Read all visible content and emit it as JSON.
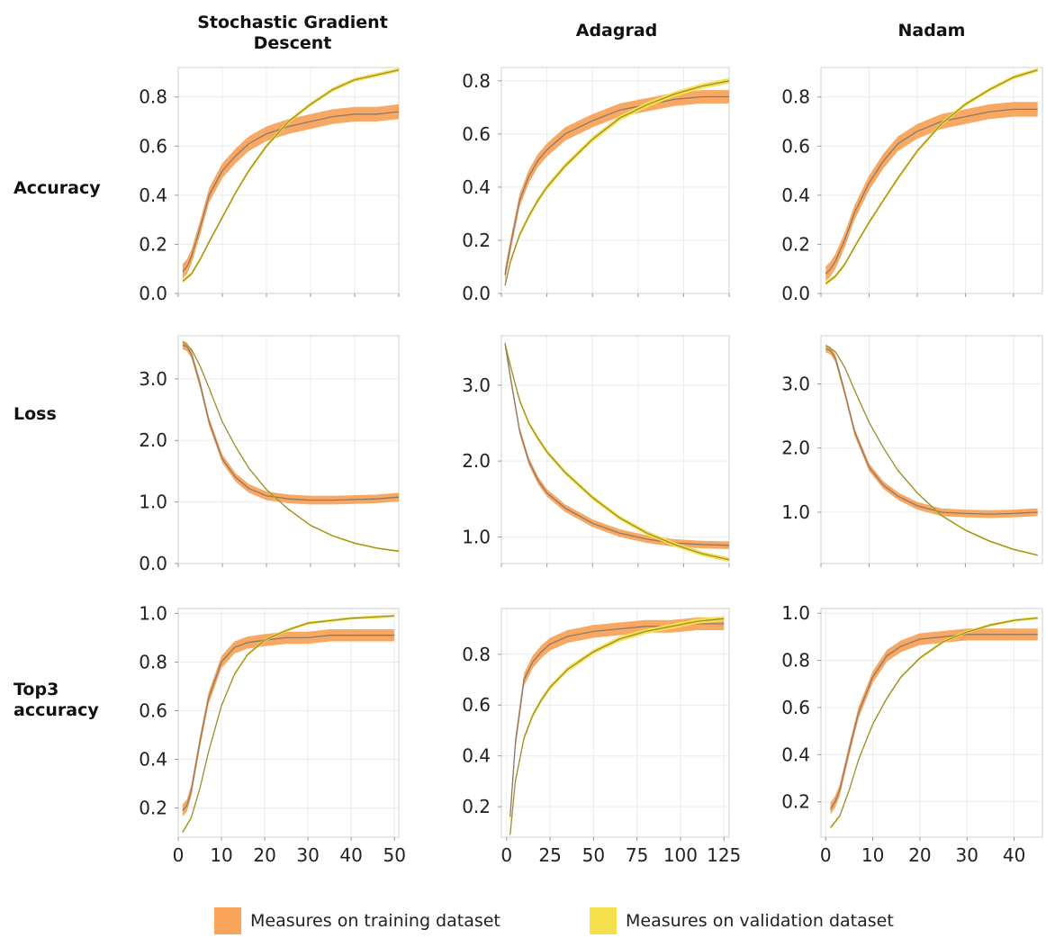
{
  "columns": [
    {
      "title_line1": "Stochastic Gradient",
      "title_line2": "Descent"
    },
    {
      "title_line1": "Adagrad",
      "title_line2": ""
    },
    {
      "title_line1": "Nadam",
      "title_line2": ""
    }
  ],
  "rows": [
    {
      "label_line1": "Accuracy",
      "label_line2": ""
    },
    {
      "label_line1": "Loss",
      "label_line2": ""
    },
    {
      "label_line1": "Top3",
      "label_line2": "accuracy"
    }
  ],
  "legend": {
    "training_label": "Measures on training dataset",
    "validation_label": "Measures on validation dataset"
  },
  "colors": {
    "training_band": "#f9a35b",
    "validation_band": "#f5e04d",
    "training_line": "#8a7a6a",
    "validation_line": "#9a8e30"
  },
  "chart_data": [
    {
      "type": "line",
      "optimizer": "Stochastic Gradient Descent",
      "metric": "Accuracy",
      "xlim": [
        0,
        50
      ],
      "ylim": [
        0,
        0.92
      ],
      "yticks": [
        0.0,
        0.2,
        0.4,
        0.6,
        0.8
      ],
      "show_xticks": false,
      "series": [
        {
          "x": [
            1,
            2,
            3,
            5,
            7,
            10,
            13,
            16,
            20,
            25,
            30,
            35,
            40,
            45,
            50
          ],
          "y": [
            0.09,
            0.11,
            0.15,
            0.27,
            0.4,
            0.5,
            0.56,
            0.61,
            0.65,
            0.68,
            0.7,
            0.72,
            0.73,
            0.73,
            0.74
          ],
          "band": 0.03
        },
        {
          "x": [
            1,
            3,
            5,
            7,
            10,
            13,
            16,
            20,
            25,
            30,
            35,
            40,
            45,
            50
          ],
          "y": [
            0.05,
            0.08,
            0.14,
            0.21,
            0.31,
            0.41,
            0.5,
            0.6,
            0.7,
            0.77,
            0.83,
            0.87,
            0.89,
            0.91
          ],
          "band": 0.008
        }
      ]
    },
    {
      "type": "line",
      "optimizer": "Adagrad",
      "metric": "Accuracy",
      "xlim": [
        0,
        125
      ],
      "ylim": [
        0,
        0.85
      ],
      "yticks": [
        0.0,
        0.2,
        0.4,
        0.6,
        0.8
      ],
      "show_xticks": false,
      "series": [
        {
          "x": [
            2,
            5,
            10,
            15,
            20,
            25,
            35,
            50,
            65,
            80,
            95,
            110,
            125
          ],
          "y": [
            0.07,
            0.18,
            0.35,
            0.44,
            0.5,
            0.54,
            0.6,
            0.65,
            0.69,
            0.71,
            0.73,
            0.74,
            0.74
          ],
          "band": 0.025
        },
        {
          "x": [
            2,
            5,
            10,
            15,
            20,
            25,
            35,
            50,
            65,
            80,
            95,
            110,
            125
          ],
          "y": [
            0.03,
            0.12,
            0.22,
            0.29,
            0.35,
            0.4,
            0.48,
            0.58,
            0.66,
            0.71,
            0.75,
            0.78,
            0.8
          ],
          "band": 0.01
        }
      ]
    },
    {
      "type": "line",
      "optimizer": "Nadam",
      "metric": "Accuracy",
      "xlim": [
        0,
        46
      ],
      "ylim": [
        0,
        0.92
      ],
      "yticks": [
        0.0,
        0.2,
        0.4,
        0.6,
        0.8
      ],
      "show_xticks": false,
      "series": [
        {
          "x": [
            1,
            2,
            3,
            5,
            7,
            10,
            13,
            16,
            20,
            25,
            30,
            35,
            40,
            45
          ],
          "y": [
            0.08,
            0.1,
            0.13,
            0.22,
            0.33,
            0.45,
            0.54,
            0.61,
            0.66,
            0.7,
            0.72,
            0.74,
            0.75,
            0.75
          ],
          "band": 0.03
        },
        {
          "x": [
            1,
            3,
            5,
            7,
            10,
            13,
            16,
            20,
            25,
            30,
            35,
            40,
            45
          ],
          "y": [
            0.04,
            0.07,
            0.12,
            0.19,
            0.29,
            0.38,
            0.47,
            0.58,
            0.69,
            0.77,
            0.83,
            0.88,
            0.91
          ],
          "band": 0.008
        }
      ]
    },
    {
      "type": "line",
      "optimizer": "Stochastic Gradient Descent",
      "metric": "Loss",
      "xlim": [
        0,
        50
      ],
      "ylim": [
        0,
        3.7
      ],
      "yticks": [
        0.0,
        1.0,
        2.0,
        3.0
      ],
      "show_xticks": false,
      "series": [
        {
          "x": [
            1,
            2,
            3,
            5,
            7,
            10,
            13,
            16,
            20,
            25,
            30,
            35,
            40,
            45,
            50
          ],
          "y": [
            3.55,
            3.52,
            3.4,
            2.9,
            2.3,
            1.7,
            1.4,
            1.22,
            1.1,
            1.05,
            1.03,
            1.03,
            1.04,
            1.05,
            1.08
          ],
          "band": 0.07
        },
        {
          "x": [
            1,
            3,
            5,
            7,
            10,
            13,
            16,
            20,
            25,
            30,
            35,
            40,
            45,
            50
          ],
          "y": [
            3.6,
            3.48,
            3.2,
            2.85,
            2.3,
            1.9,
            1.55,
            1.2,
            0.88,
            0.62,
            0.45,
            0.33,
            0.25,
            0.2
          ],
          "band": 0.015
        }
      ]
    },
    {
      "type": "line",
      "optimizer": "Adagrad",
      "metric": "Loss",
      "xlim": [
        0,
        125
      ],
      "ylim": [
        0.65,
        3.65
      ],
      "yticks": [
        1.0,
        2.0,
        3.0
      ],
      "show_xticks": false,
      "series": [
        {
          "x": [
            2,
            5,
            10,
            15,
            20,
            25,
            35,
            50,
            65,
            80,
            95,
            110,
            125
          ],
          "y": [
            3.55,
            3.1,
            2.4,
            2.0,
            1.75,
            1.58,
            1.38,
            1.18,
            1.05,
            0.97,
            0.92,
            0.9,
            0.89
          ],
          "band": 0.05
        },
        {
          "x": [
            2,
            5,
            10,
            15,
            20,
            25,
            35,
            50,
            65,
            80,
            95,
            110,
            125
          ],
          "y": [
            3.55,
            3.25,
            2.8,
            2.5,
            2.3,
            2.12,
            1.85,
            1.52,
            1.25,
            1.05,
            0.9,
            0.78,
            0.7
          ],
          "band": 0.03
        }
      ]
    },
    {
      "type": "line",
      "optimizer": "Nadam",
      "metric": "Loss",
      "xlim": [
        0,
        46
      ],
      "ylim": [
        0.2,
        3.75
      ],
      "yticks": [
        1.0,
        2.0,
        3.0
      ],
      "show_xticks": false,
      "series": [
        {
          "x": [
            1,
            2,
            3,
            5,
            7,
            10,
            13,
            16,
            20,
            25,
            30,
            35,
            40,
            45
          ],
          "y": [
            3.55,
            3.52,
            3.4,
            2.85,
            2.25,
            1.7,
            1.42,
            1.25,
            1.1,
            1.0,
            0.98,
            0.97,
            0.98,
            1.0
          ],
          "band": 0.06
        },
        {
          "x": [
            1,
            3,
            5,
            7,
            10,
            13,
            16,
            20,
            25,
            30,
            35,
            40,
            45
          ],
          "y": [
            3.6,
            3.5,
            3.25,
            2.9,
            2.4,
            2.0,
            1.65,
            1.3,
            0.95,
            0.72,
            0.55,
            0.42,
            0.33
          ],
          "band": 0.015
        }
      ]
    },
    {
      "type": "line",
      "optimizer": "Stochastic Gradient Descent",
      "metric": "Top3 accuracy",
      "xlim": [
        0,
        51
      ],
      "ylim": [
        0.08,
        1.02
      ],
      "yticks": [
        0.2,
        0.4,
        0.6,
        0.8,
        1.0
      ],
      "xticks": [
        0,
        10,
        20,
        30,
        40,
        50
      ],
      "show_xticks": true,
      "series": [
        {
          "x": [
            1,
            2,
            3,
            5,
            7,
            10,
            13,
            16,
            20,
            25,
            30,
            35,
            40,
            45,
            50
          ],
          "y": [
            0.19,
            0.21,
            0.27,
            0.47,
            0.65,
            0.8,
            0.86,
            0.88,
            0.89,
            0.9,
            0.9,
            0.91,
            0.91,
            0.91,
            0.91
          ],
          "band": 0.025
        },
        {
          "x": [
            1,
            3,
            5,
            7,
            10,
            13,
            16,
            20,
            25,
            30,
            35,
            40,
            45,
            50
          ],
          "y": [
            0.1,
            0.16,
            0.28,
            0.43,
            0.62,
            0.75,
            0.83,
            0.89,
            0.93,
            0.96,
            0.97,
            0.98,
            0.985,
            0.99
          ],
          "band": 0.006
        }
      ]
    },
    {
      "type": "line",
      "optimizer": "Adagrad",
      "metric": "Top3 accuracy",
      "xlim": [
        -3,
        128
      ],
      "ylim": [
        0.08,
        0.98
      ],
      "yticks": [
        0.2,
        0.4,
        0.6,
        0.8
      ],
      "xticks": [
        0,
        25,
        50,
        75,
        100,
        125
      ],
      "show_xticks": true,
      "series": [
        {
          "x": [
            2,
            5,
            10,
            15,
            20,
            25,
            35,
            50,
            65,
            80,
            95,
            110,
            125
          ],
          "y": [
            0.16,
            0.45,
            0.7,
            0.77,
            0.81,
            0.84,
            0.87,
            0.89,
            0.9,
            0.91,
            0.91,
            0.92,
            0.92
          ],
          "band": 0.025
        },
        {
          "x": [
            2,
            5,
            10,
            15,
            20,
            25,
            35,
            50,
            65,
            80,
            95,
            110,
            125
          ],
          "y": [
            0.09,
            0.3,
            0.47,
            0.56,
            0.62,
            0.67,
            0.74,
            0.81,
            0.86,
            0.89,
            0.91,
            0.93,
            0.94
          ],
          "band": 0.01
        }
      ]
    },
    {
      "type": "line",
      "optimizer": "Nadam",
      "metric": "Top3 accuracy",
      "xlim": [
        -1,
        46
      ],
      "ylim": [
        0.05,
        1.02
      ],
      "yticks": [
        0.2,
        0.4,
        0.6,
        0.8,
        1.0
      ],
      "xticks": [
        0,
        10,
        20,
        30,
        40
      ],
      "show_xticks": true,
      "series": [
        {
          "x": [
            1,
            2,
            3,
            5,
            7,
            10,
            13,
            16,
            20,
            25,
            30,
            35,
            40,
            45
          ],
          "y": [
            0.17,
            0.2,
            0.25,
            0.42,
            0.58,
            0.73,
            0.82,
            0.86,
            0.89,
            0.9,
            0.91,
            0.91,
            0.91,
            0.91
          ],
          "band": 0.025
        },
        {
          "x": [
            1,
            3,
            5,
            7,
            10,
            13,
            16,
            20,
            25,
            30,
            35,
            40,
            45
          ],
          "y": [
            0.09,
            0.14,
            0.25,
            0.38,
            0.53,
            0.64,
            0.73,
            0.81,
            0.88,
            0.92,
            0.95,
            0.97,
            0.98
          ],
          "band": 0.006
        }
      ]
    }
  ]
}
